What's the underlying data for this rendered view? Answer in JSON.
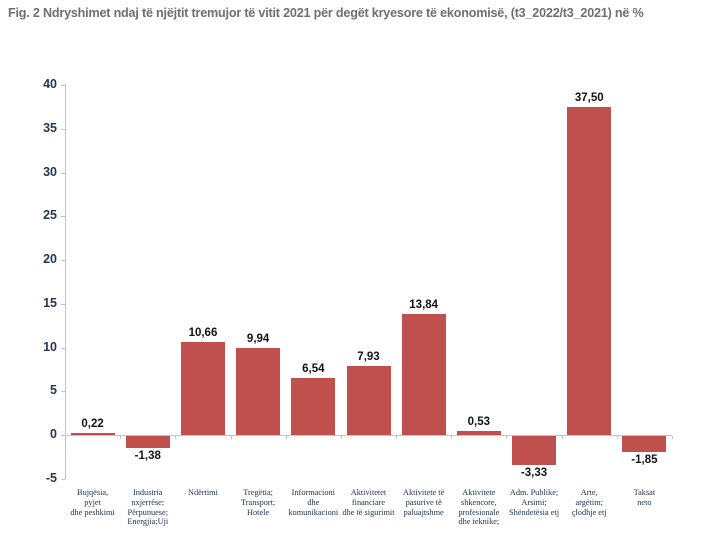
{
  "title": "Fig. 2 Ndryshimet ndaj të njëjtit tremujor të vitit 2021 për degët kryesore të ekonomisë, (t3_2022/t3_2021) në %",
  "colors": {
    "bar": "#c0504d",
    "axis": "#c3c3c3",
    "title_text": "#6e6f72",
    "tick_label_text": "#253750",
    "data_label_text": "#131313",
    "category_label_text": "#203450",
    "background": "#ffffff"
  },
  "chart_data": {
    "type": "bar",
    "title": "Fig. 2 Ndryshimet ndaj të njëjtit tremujor të vitit 2021 për degët kryesore të ekonomisë, (t3_2022/t3_2021) në %",
    "xlabel": "",
    "ylabel": "",
    "ylim": [
      -5,
      40
    ],
    "yticks": [
      40,
      35,
      30,
      25,
      20,
      15,
      10,
      5,
      0,
      -5
    ],
    "grid": false,
    "legend": "none",
    "categories": [
      "Bujqësia, pyjet dhe peshkimi",
      "Industria nxjerrëse; Përpunuese; Energjia;Uji",
      "Ndërtimi",
      "Tregëtia; Transport; Hotele",
      "Informacioni dhe komunikacioni",
      "Aktivitetet financiare dhe të sigurimit",
      "Aktivitete të pasurive të paluajtshme",
      "Aktivitete shkencore, profesionale dhe teknike;",
      "Adm. Publike; Arsimi; Shëndetësia etj",
      "Arte, argëtim; çlodhje etj",
      "Taksat neto"
    ],
    "category_lines": [
      [
        "Bujqësia,",
        "pyjet",
        "dhe peshkimi"
      ],
      [
        "Industria",
        "nxjerrëse;",
        "Përpunuese;",
        "Energjia;Uji"
      ],
      [
        "Ndërtimi"
      ],
      [
        "Tregëtia;",
        "Transport;",
        "Hotele"
      ],
      [
        "Informacioni",
        "dhe",
        "komunikacioni"
      ],
      [
        "Aktivitetet",
        "financiare",
        "dhe të sigurimit"
      ],
      [
        "Aktivitete të",
        "pasurive të",
        "paluajtshme"
      ],
      [
        "Aktivitete",
        "shkencore,",
        "profesionale",
        "dhe teknike;"
      ],
      [
        "Adm. Publike;",
        "Arsimi;",
        "Shëndetësia etj"
      ],
      [
        "Arte,",
        "argëtim;",
        "çlodhje etj"
      ],
      [
        "Taksat",
        "neto"
      ]
    ],
    "values": [
      0.22,
      -1.38,
      10.66,
      9.94,
      6.54,
      7.93,
      13.84,
      0.53,
      -3.33,
      37.5,
      -1.85
    ],
    "value_labels": [
      "0,22",
      "-1,38",
      "10,66",
      "9,94",
      "6,54",
      "7,93",
      "13,84",
      "0,53",
      "-3,33",
      "37,50",
      "-1,85"
    ]
  }
}
